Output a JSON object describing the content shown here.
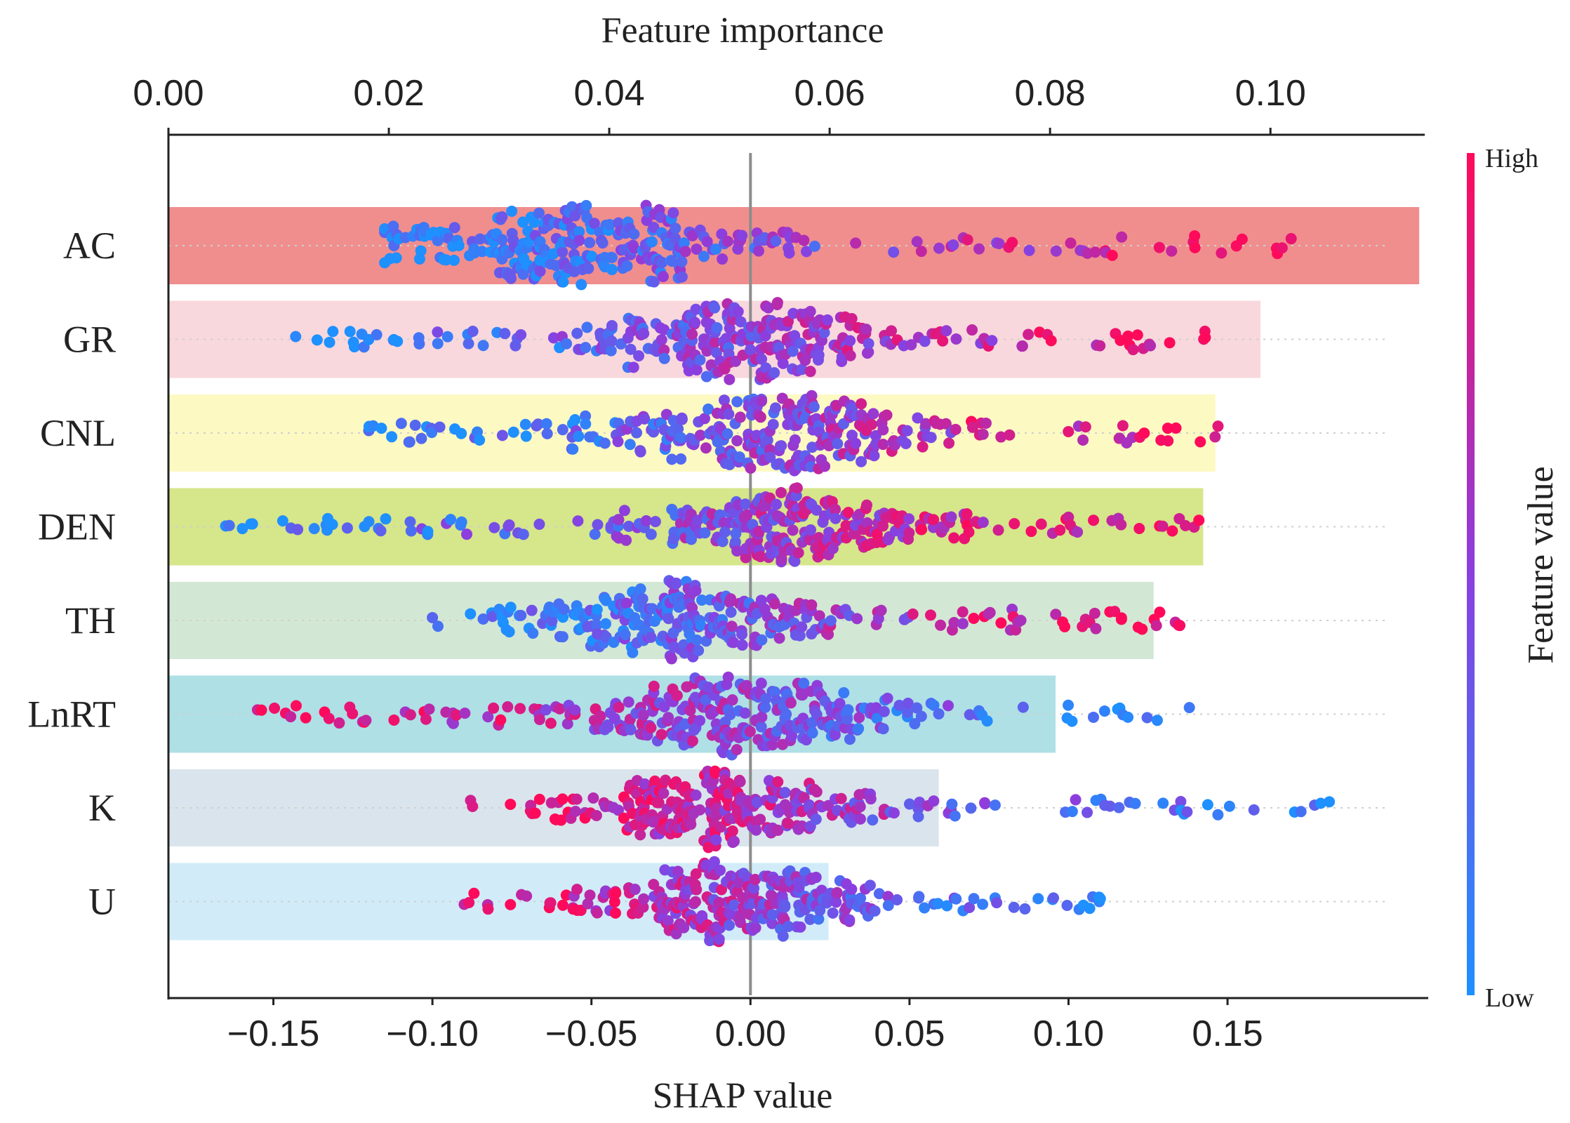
{
  "chart_data": {
    "type": "scatter",
    "subtype": "shap-beeswarm-with-importance-bars",
    "title": "",
    "top_axis": {
      "label": "Feature importance",
      "range": [
        0.0,
        0.114
      ],
      "ticks": [
        0.0,
        0.02,
        0.04,
        0.06,
        0.08,
        0.1
      ],
      "tick_labels": [
        "0.00",
        "0.02",
        "0.04",
        "0.06",
        "0.08",
        "0.10"
      ]
    },
    "bottom_axis": {
      "label": "SHAP value",
      "range": [
        -0.183,
        0.212
      ],
      "ticks": [
        -0.15,
        -0.1,
        -0.05,
        0.0,
        0.05,
        0.1,
        0.15
      ],
      "tick_labels": [
        "−0.15",
        "−0.10",
        "−0.05",
        "0.00",
        "0.05",
        "0.10",
        "0.15"
      ]
    },
    "colorbar": {
      "label": "Feature value",
      "high_label": "High",
      "low_label": "Low",
      "low_color": "#1e90ff",
      "mid_color": "#8a3fe0",
      "high_color": "#ff0a5a"
    },
    "features": [
      {
        "name": "AC",
        "importance": 0.1135,
        "bar_color": "#f08e8e",
        "shap_min": -0.115,
        "shap_max": 0.17,
        "peak": -0.055,
        "spread": 0.04,
        "low_side": "left"
      },
      {
        "name": "GR",
        "importance": 0.0991,
        "bar_color": "#f8d8dc",
        "shap_min": -0.143,
        "shap_max": 0.143,
        "peak": 0.0,
        "spread": 0.035,
        "low_side": "left"
      },
      {
        "name": "CNL",
        "importance": 0.095,
        "bar_color": "#fdf9c3",
        "shap_min": -0.12,
        "shap_max": 0.147,
        "peak": 0.01,
        "spread": 0.035,
        "low_side": "left"
      },
      {
        "name": "DEN",
        "importance": 0.0939,
        "bar_color": "#d6e68a",
        "shap_min": -0.165,
        "shap_max": 0.141,
        "peak": 0.01,
        "spread": 0.04,
        "low_side": "left"
      },
      {
        "name": "TH",
        "importance": 0.0894,
        "bar_color": "#d3e8d4",
        "shap_min": -0.1,
        "shap_max": 0.135,
        "peak": -0.02,
        "spread": 0.035,
        "low_side": "left"
      },
      {
        "name": "LnRT",
        "importance": 0.0805,
        "bar_color": "#aee0e6",
        "shap_min": -0.155,
        "shap_max": 0.138,
        "peak": -0.005,
        "spread": 0.04,
        "low_side": "right"
      },
      {
        "name": "K",
        "importance": 0.0699,
        "bar_color": "#dae4ec",
        "shap_min": -0.088,
        "shap_max": 0.182,
        "peak": -0.005,
        "spread": 0.03,
        "low_side": "right"
      },
      {
        "name": "U",
        "importance": 0.0599,
        "bar_color": "#d1ecf8",
        "shap_min": -0.09,
        "shap_max": 0.11,
        "peak": 0.0,
        "spread": 0.03,
        "low_side": "right"
      }
    ]
  }
}
